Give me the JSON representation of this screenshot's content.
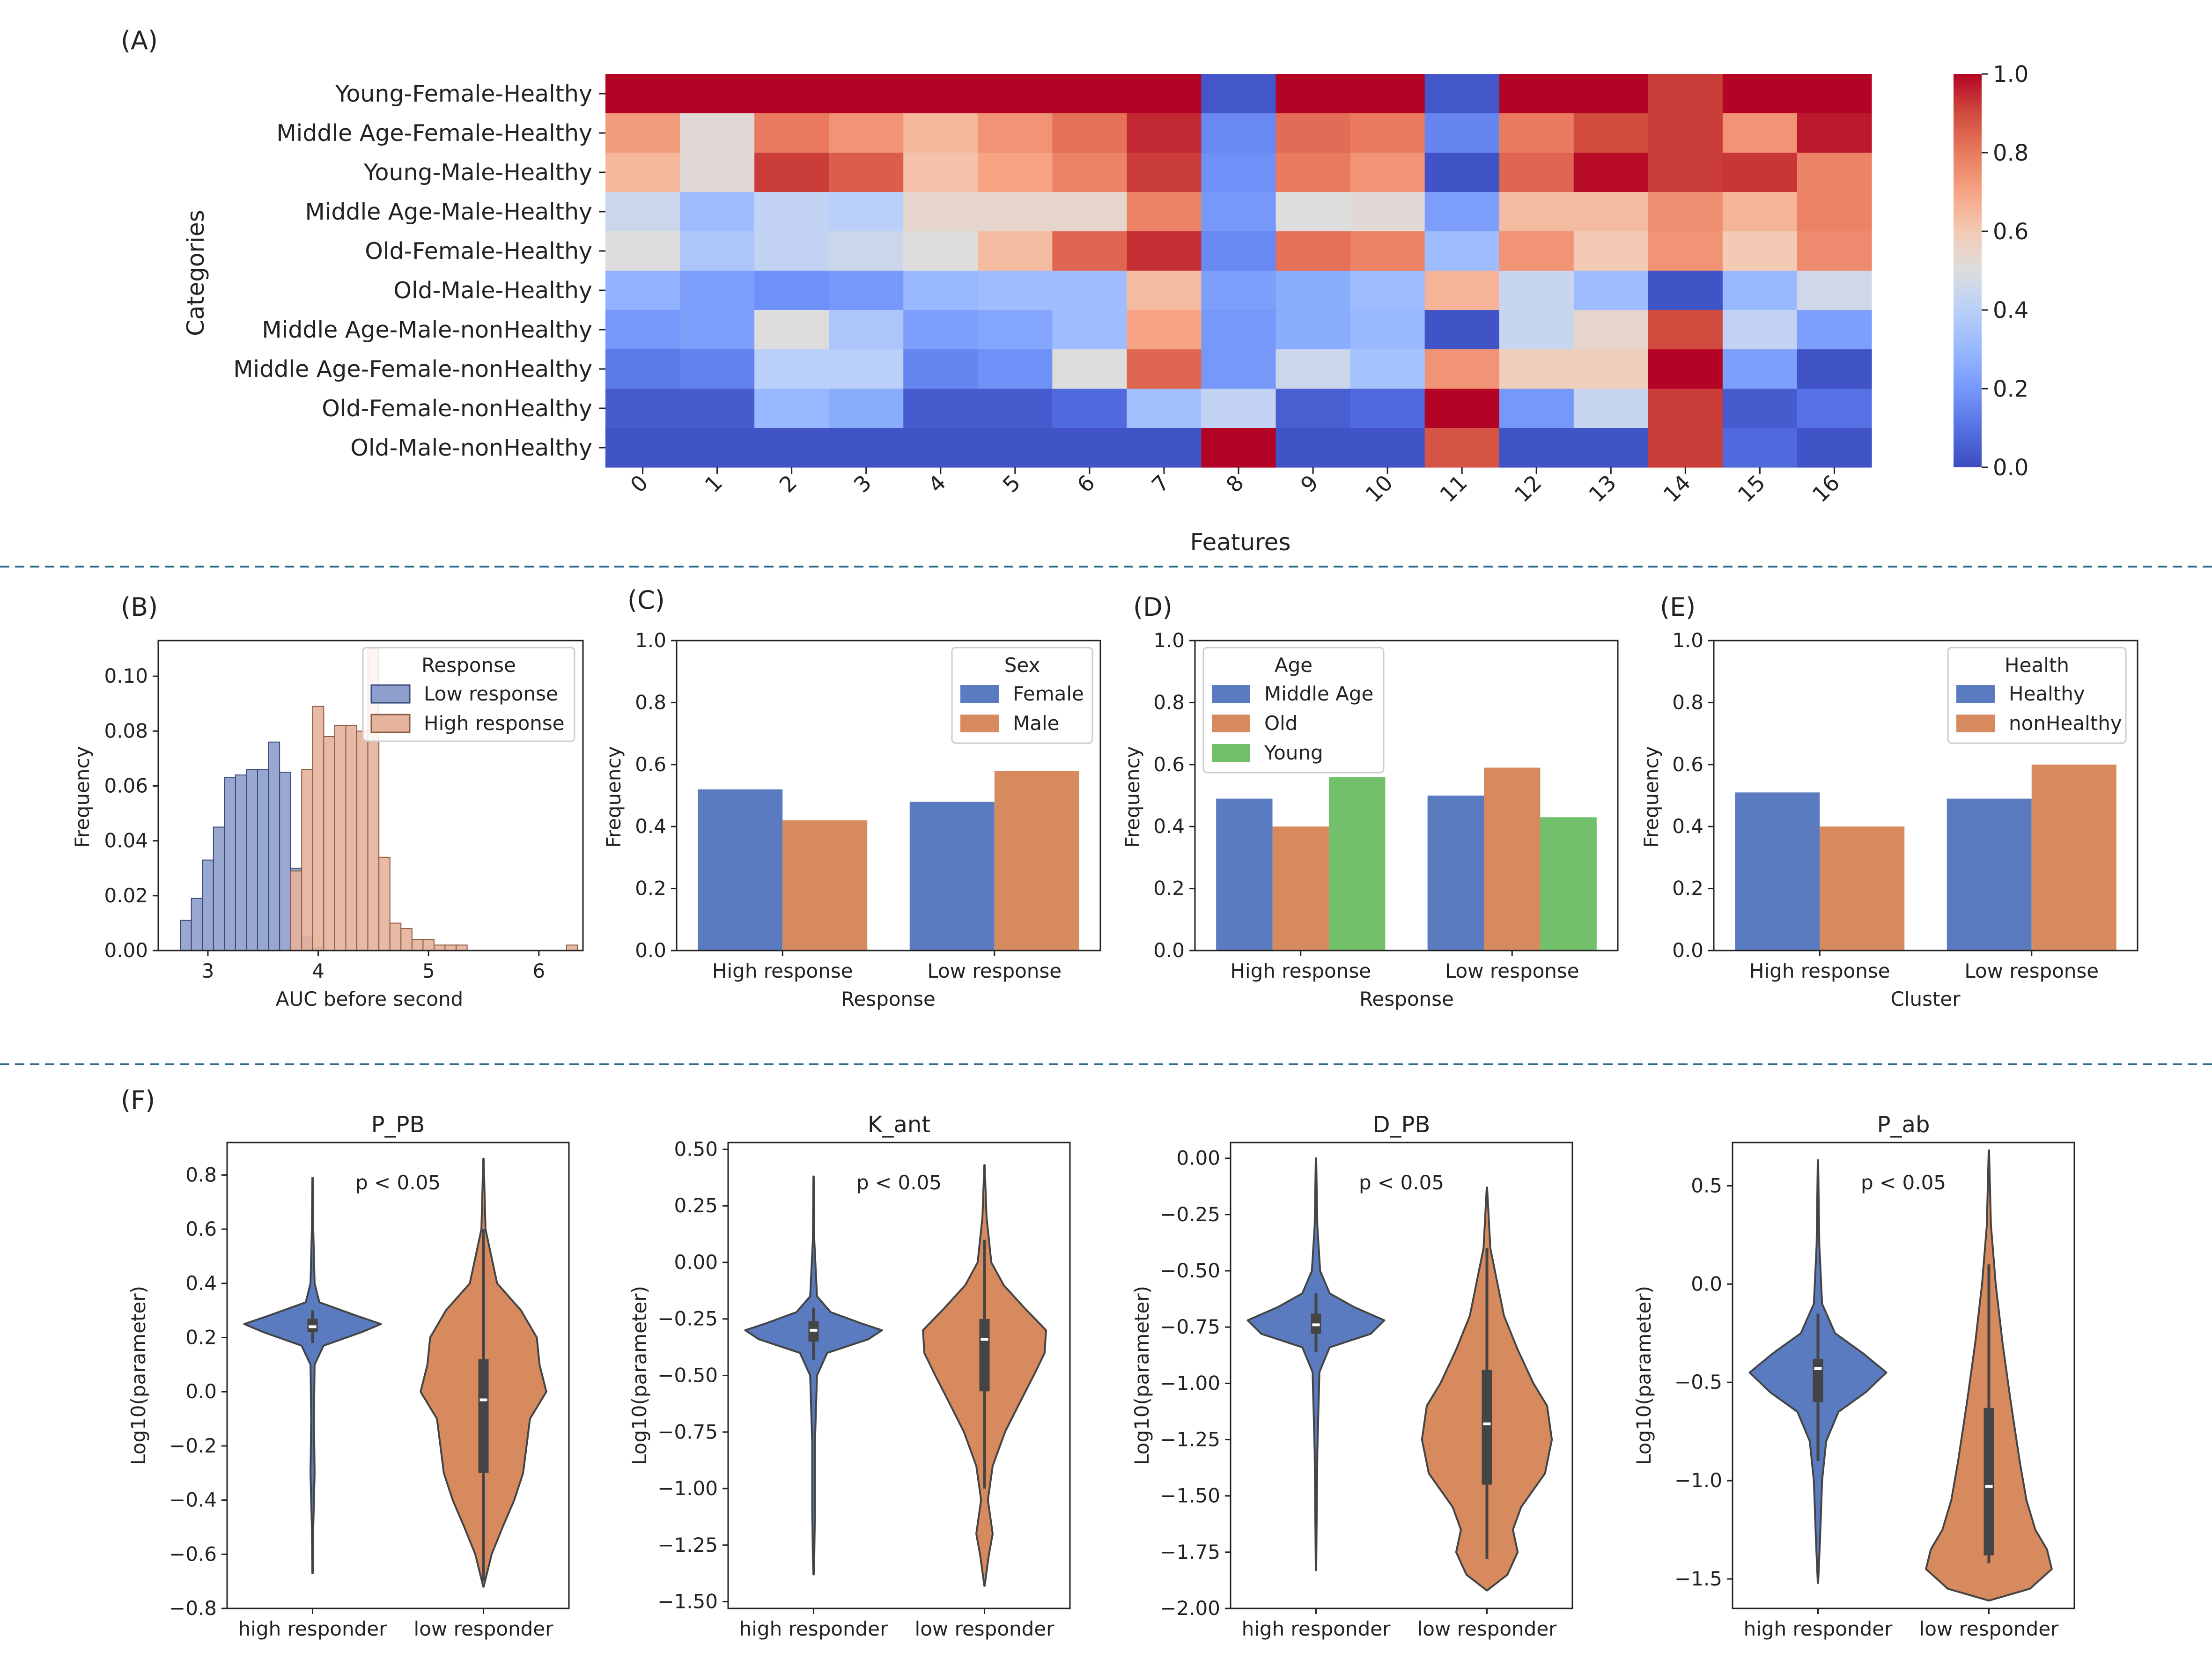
{
  "panel_labels": [
    "(A)",
    "(B)",
    "(C)",
    "(D)",
    "(E)",
    "(F)"
  ],
  "colors": {
    "blue": "#5a7bc0",
    "orange": "#d68a5e",
    "green": "#72c06c",
    "hist_low": "#8d9fcc",
    "hist_high": "#e6b39c",
    "divider": "#2b6c8a"
  },
  "chart_data": [
    {
      "id": "A",
      "type": "heatmap",
      "xlabel": "Features",
      "ylabel": "Categories",
      "x": [
        "0",
        "1",
        "2",
        "3",
        "4",
        "5",
        "6",
        "7",
        "8",
        "9",
        "10",
        "11",
        "12",
        "13",
        "14",
        "15",
        "16"
      ],
      "y": [
        "Young-Female-Healthy",
        "Middle Age-Female-Healthy",
        "Young-Male-Healthy",
        "Middle Age-Male-Healthy",
        "Old-Female-Healthy",
        "Old-Male-Healthy",
        "Middle Age-Male-nonHealthy",
        "Middle Age-Female-nonHealthy",
        "Old-Female-nonHealthy",
        "Old-Male-nonHealthy"
      ],
      "values": [
        [
          1.0,
          1.0,
          1.0,
          1.0,
          1.0,
          1.0,
          1.0,
          1.0,
          0.03,
          1.0,
          1.0,
          0.03,
          1.0,
          1.0,
          0.92,
          1.0,
          1.0
        ],
        [
          0.72,
          0.52,
          0.8,
          0.74,
          0.65,
          0.74,
          0.82,
          0.95,
          0.16,
          0.83,
          0.8,
          0.15,
          0.8,
          0.9,
          0.92,
          0.74,
          0.97
        ],
        [
          0.65,
          0.52,
          0.92,
          0.86,
          0.62,
          0.7,
          0.78,
          0.92,
          0.18,
          0.8,
          0.74,
          0.02,
          0.84,
          0.99,
          0.92,
          0.93,
          0.78
        ],
        [
          0.45,
          0.32,
          0.42,
          0.4,
          0.54,
          0.54,
          0.54,
          0.78,
          0.2,
          0.5,
          0.52,
          0.22,
          0.64,
          0.64,
          0.75,
          0.66,
          0.78
        ],
        [
          0.5,
          0.36,
          0.42,
          0.45,
          0.5,
          0.64,
          0.84,
          0.94,
          0.16,
          0.82,
          0.78,
          0.32,
          0.74,
          0.6,
          0.74,
          0.6,
          0.76
        ],
        [
          0.28,
          0.22,
          0.18,
          0.2,
          0.3,
          0.32,
          0.32,
          0.64,
          0.22,
          0.26,
          0.32,
          0.66,
          0.44,
          0.32,
          0.02,
          0.3,
          0.46
        ],
        [
          0.2,
          0.22,
          0.5,
          0.36,
          0.22,
          0.24,
          0.32,
          0.7,
          0.2,
          0.26,
          0.3,
          0.02,
          0.44,
          0.54,
          0.9,
          0.42,
          0.22
        ],
        [
          0.12,
          0.14,
          0.4,
          0.4,
          0.15,
          0.18,
          0.5,
          0.84,
          0.2,
          0.45,
          0.34,
          0.74,
          0.58,
          0.58,
          1.0,
          0.22,
          0.02
        ],
        [
          0.04,
          0.04,
          0.3,
          0.26,
          0.04,
          0.04,
          0.08,
          0.33,
          0.42,
          0.05,
          0.08,
          1.0,
          0.2,
          0.44,
          0.92,
          0.04,
          0.1
        ],
        [
          0.02,
          0.02,
          0.02,
          0.02,
          0.02,
          0.02,
          0.02,
          0.02,
          1.0,
          0.02,
          0.02,
          0.88,
          0.02,
          0.02,
          0.92,
          0.08,
          0.02
        ]
      ],
      "colorbar": {
        "ticks": [
          "0.0",
          "0.2",
          "0.4",
          "0.6",
          "0.8",
          "1.0"
        ],
        "range": [
          0,
          1
        ],
        "cmap": "coolwarm"
      }
    },
    {
      "id": "B",
      "type": "bar",
      "subtype": "histogram",
      "xlabel": "AUC before second",
      "ylabel": "Frequency",
      "xlim": [
        2.55,
        6.4
      ],
      "ylim": [
        0,
        0.113
      ],
      "xticks": [
        "3",
        "4",
        "5",
        "6"
      ],
      "yticks": [
        "0.00",
        "0.02",
        "0.04",
        "0.06",
        "0.08",
        "0.10"
      ],
      "legend_title": "Response",
      "bin_width": 0.1,
      "series": [
        {
          "name": "Low response",
          "bin_starts": [
            2.75,
            2.85,
            2.95,
            3.05,
            3.15,
            3.25,
            3.35,
            3.45,
            3.55,
            3.65,
            3.75,
            3.85,
            3.95
          ],
          "values": [
            0.011,
            0.019,
            0.033,
            0.045,
            0.063,
            0.064,
            0.066,
            0.066,
            0.076,
            0.065,
            0.03,
            0.005,
            0.001
          ]
        },
        {
          "name": "High response",
          "bin_starts": [
            3.75,
            3.85,
            3.95,
            4.05,
            4.15,
            4.25,
            4.35,
            4.45,
            4.55,
            4.65,
            4.75,
            4.85,
            4.95,
            5.05,
            5.15,
            5.25,
            6.25
          ],
          "values": [
            0.029,
            0.066,
            0.089,
            0.078,
            0.082,
            0.082,
            0.08,
            0.11,
            0.034,
            0.01,
            0.008,
            0.004,
            0.004,
            0.002,
            0.002,
            0.002,
            0.002
          ]
        }
      ]
    },
    {
      "id": "C",
      "type": "bar",
      "xlabel": "Response",
      "ylabel": "Frequency",
      "ylim": [
        0,
        1.0
      ],
      "yticks": [
        "0.0",
        "0.2",
        "0.4",
        "0.6",
        "0.8",
        "1.0"
      ],
      "categories": [
        "High response",
        "Low response"
      ],
      "legend_title": "Sex",
      "series": [
        {
          "name": "Female",
          "values": [
            0.52,
            0.48
          ]
        },
        {
          "name": "Male",
          "values": [
            0.42,
            0.58
          ]
        }
      ]
    },
    {
      "id": "D",
      "type": "bar",
      "xlabel": "Response",
      "ylabel": "Frequency",
      "ylim": [
        0,
        1.0
      ],
      "yticks": [
        "0.0",
        "0.2",
        "0.4",
        "0.6",
        "0.8",
        "1.0"
      ],
      "categories": [
        "High response",
        "Low response"
      ],
      "legend_title": "Age",
      "series": [
        {
          "name": "Middle Age",
          "values": [
            0.49,
            0.5
          ]
        },
        {
          "name": "Old",
          "values": [
            0.4,
            0.59
          ]
        },
        {
          "name": "Young",
          "values": [
            0.56,
            0.43
          ]
        }
      ]
    },
    {
      "id": "E",
      "type": "bar",
      "xlabel": "Cluster",
      "ylabel": "Frequency",
      "ylim": [
        0,
        1.0
      ],
      "yticks": [
        "0.0",
        "0.2",
        "0.4",
        "0.6",
        "0.8",
        "1.0"
      ],
      "categories": [
        "High response",
        "Low response"
      ],
      "legend_title": "Health",
      "series": [
        {
          "name": "Healthy",
          "values": [
            0.51,
            0.49
          ]
        },
        {
          "name": "nonHealthy",
          "values": [
            0.4,
            0.6
          ]
        }
      ]
    },
    {
      "id": "F1",
      "type": "violin",
      "title": "P_PB",
      "ylabel": "Log10(parameter)",
      "annotation": "p < 0.05",
      "categories": [
        "high responder",
        "low responder"
      ],
      "ylim": [
        -0.8,
        0.92
      ],
      "yticks": [
        0.8,
        0.6,
        0.4,
        0.2,
        0.0,
        -0.2,
        -0.4,
        -0.6,
        -0.8
      ],
      "ytick_labels": [
        "0.8",
        "0.6",
        "0.4",
        "0.2",
        "0.0",
        "−0.2",
        "−0.4",
        "−0.6",
        "−0.8"
      ],
      "violins": [
        {
          "profile": [
            [
              0.79,
              0.003
            ],
            [
              0.6,
              0.01
            ],
            [
              0.4,
              0.03
            ],
            [
              0.33,
              0.1
            ],
            [
              0.28,
              0.65
            ],
            [
              0.25,
              1.0
            ],
            [
              0.22,
              0.72
            ],
            [
              0.17,
              0.16
            ],
            [
              0.1,
              0.03
            ],
            [
              -0.1,
              0.02
            ],
            [
              -0.3,
              0.03
            ],
            [
              -0.5,
              0.01
            ],
            [
              -0.67,
              0.003
            ]
          ],
          "q1": 0.22,
          "median": 0.24,
          "q3": 0.27,
          "whisker_low": 0.18,
          "whisker_high": 0.3
        },
        {
          "profile": [
            [
              0.86,
              0.003
            ],
            [
              0.6,
              0.03
            ],
            [
              0.4,
              0.2
            ],
            [
              0.3,
              0.55
            ],
            [
              0.2,
              0.78
            ],
            [
              0.1,
              0.82
            ],
            [
              0.0,
              0.92
            ],
            [
              -0.1,
              0.68
            ],
            [
              -0.2,
              0.63
            ],
            [
              -0.3,
              0.58
            ],
            [
              -0.4,
              0.45
            ],
            [
              -0.5,
              0.28
            ],
            [
              -0.6,
              0.12
            ],
            [
              -0.72,
              0.003
            ]
          ],
          "q1": -0.3,
          "median": -0.03,
          "q3": 0.12,
          "whisker_low": -0.7,
          "whisker_high": 0.6
        }
      ]
    },
    {
      "id": "F2",
      "type": "violin",
      "title": "K_ant",
      "ylabel": "Log10(parameter)",
      "annotation": "p < 0.05",
      "categories": [
        "high responder",
        "low responder"
      ],
      "ylim": [
        -1.53,
        0.53
      ],
      "yticks": [
        0.5,
        0.25,
        0.0,
        -0.25,
        -0.5,
        -0.75,
        -1.0,
        -1.25,
        -1.5
      ],
      "ytick_labels": [
        "0.50",
        "0.25",
        "0.00",
        "−0.25",
        "−0.50",
        "−0.75",
        "−1.00",
        "−1.25",
        "−1.50"
      ],
      "violins": [
        {
          "profile": [
            [
              0.38,
              0.003
            ],
            [
              0.1,
              0.01
            ],
            [
              -0.15,
              0.05
            ],
            [
              -0.22,
              0.25
            ],
            [
              -0.27,
              0.7
            ],
            [
              -0.3,
              1.0
            ],
            [
              -0.34,
              0.8
            ],
            [
              -0.4,
              0.2
            ],
            [
              -0.5,
              0.05
            ],
            [
              -0.8,
              0.02
            ],
            [
              -1.1,
              0.02
            ],
            [
              -1.3,
              0.01
            ],
            [
              -1.38,
              0.003
            ]
          ],
          "q1": -0.35,
          "median": -0.3,
          "q3": -0.26,
          "whisker_low": -0.43,
          "whisker_high": -0.2
        },
        {
          "profile": [
            [
              0.43,
              0.003
            ],
            [
              0.2,
              0.03
            ],
            [
              0.0,
              0.1
            ],
            [
              -0.1,
              0.28
            ],
            [
              -0.2,
              0.58
            ],
            [
              -0.3,
              0.9
            ],
            [
              -0.4,
              0.88
            ],
            [
              -0.5,
              0.72
            ],
            [
              -0.6,
              0.55
            ],
            [
              -0.75,
              0.3
            ],
            [
              -0.9,
              0.12
            ],
            [
              -1.05,
              0.05
            ],
            [
              -1.2,
              0.12
            ],
            [
              -1.3,
              0.06
            ],
            [
              -1.43,
              0.003
            ]
          ],
          "q1": -0.57,
          "median": -0.34,
          "q3": -0.25,
          "whisker_low": -1.0,
          "whisker_high": 0.1
        }
      ]
    },
    {
      "id": "F3",
      "type": "violin",
      "title": "D_PB",
      "ylabel": "Log10(parameter)",
      "annotation": "p < 0.05",
      "categories": [
        "high responder",
        "low responder"
      ],
      "ylim": [
        -2.0,
        0.07
      ],
      "yticks": [
        0.0,
        -0.25,
        -0.5,
        -0.75,
        -1.0,
        -1.25,
        -1.5,
        -1.75,
        -2.0
      ],
      "ytick_labels": [
        "0.00",
        "−0.25",
        "−0.50",
        "−0.75",
        "−1.00",
        "−1.25",
        "−1.50",
        "−1.75",
        "−2.00"
      ],
      "violins": [
        {
          "profile": [
            [
              0.0,
              0.003
            ],
            [
              -0.3,
              0.02
            ],
            [
              -0.5,
              0.06
            ],
            [
              -0.6,
              0.2
            ],
            [
              -0.66,
              0.55
            ],
            [
              -0.72,
              1.0
            ],
            [
              -0.78,
              0.8
            ],
            [
              -0.84,
              0.2
            ],
            [
              -0.95,
              0.05
            ],
            [
              -1.3,
              0.02
            ],
            [
              -1.6,
              0.01
            ],
            [
              -1.83,
              0.003
            ]
          ],
          "q1": -0.78,
          "median": -0.74,
          "q3": -0.69,
          "whisker_low": -0.86,
          "whisker_high": -0.6
        },
        {
          "profile": [
            [
              -0.13,
              0.003
            ],
            [
              -0.4,
              0.05
            ],
            [
              -0.7,
              0.25
            ],
            [
              -0.85,
              0.45
            ],
            [
              -1.0,
              0.68
            ],
            [
              -1.1,
              0.88
            ],
            [
              -1.25,
              0.95
            ],
            [
              -1.4,
              0.85
            ],
            [
              -1.55,
              0.5
            ],
            [
              -1.65,
              0.38
            ],
            [
              -1.75,
              0.45
            ],
            [
              -1.85,
              0.3
            ],
            [
              -1.92,
              0.003
            ]
          ],
          "q1": -1.45,
          "median": -1.18,
          "q3": -0.94,
          "whisker_low": -1.78,
          "whisker_high": -0.4
        }
      ]
    },
    {
      "id": "F4",
      "type": "violin",
      "title": "P_ab",
      "ylabel": "Log10(parameter)",
      "annotation": "p < 0.05",
      "categories": [
        "high responder",
        "low responder"
      ],
      "ylim": [
        -1.65,
        0.72
      ],
      "yticks": [
        0.5,
        0.0,
        -0.5,
        -1.0,
        -1.5
      ],
      "ytick_labels": [
        "0.5",
        "0.0",
        "−0.5",
        "−1.0",
        "−1.5"
      ],
      "violins": [
        {
          "profile": [
            [
              0.63,
              0.003
            ],
            [
              0.2,
              0.02
            ],
            [
              -0.1,
              0.06
            ],
            [
              -0.25,
              0.25
            ],
            [
              -0.35,
              0.65
            ],
            [
              -0.45,
              1.0
            ],
            [
              -0.55,
              0.7
            ],
            [
              -0.65,
              0.3
            ],
            [
              -0.8,
              0.12
            ],
            [
              -1.0,
              0.06
            ],
            [
              -1.3,
              0.03
            ],
            [
              -1.52,
              0.003
            ]
          ],
          "q1": -0.6,
          "median": -0.43,
          "q3": -0.38,
          "whisker_low": -0.9,
          "whisker_high": -0.15
        },
        {
          "profile": [
            [
              0.68,
              0.003
            ],
            [
              0.3,
              0.03
            ],
            [
              0.0,
              0.1
            ],
            [
              -0.3,
              0.2
            ],
            [
              -0.6,
              0.32
            ],
            [
              -0.9,
              0.45
            ],
            [
              -1.1,
              0.55
            ],
            [
              -1.25,
              0.68
            ],
            [
              -1.35,
              0.85
            ],
            [
              -1.45,
              0.92
            ],
            [
              -1.55,
              0.6
            ],
            [
              -1.61,
              0.003
            ]
          ],
          "q1": -1.38,
          "median": -1.03,
          "q3": -0.63,
          "whisker_low": -1.42,
          "whisker_high": 0.1
        }
      ]
    }
  ]
}
